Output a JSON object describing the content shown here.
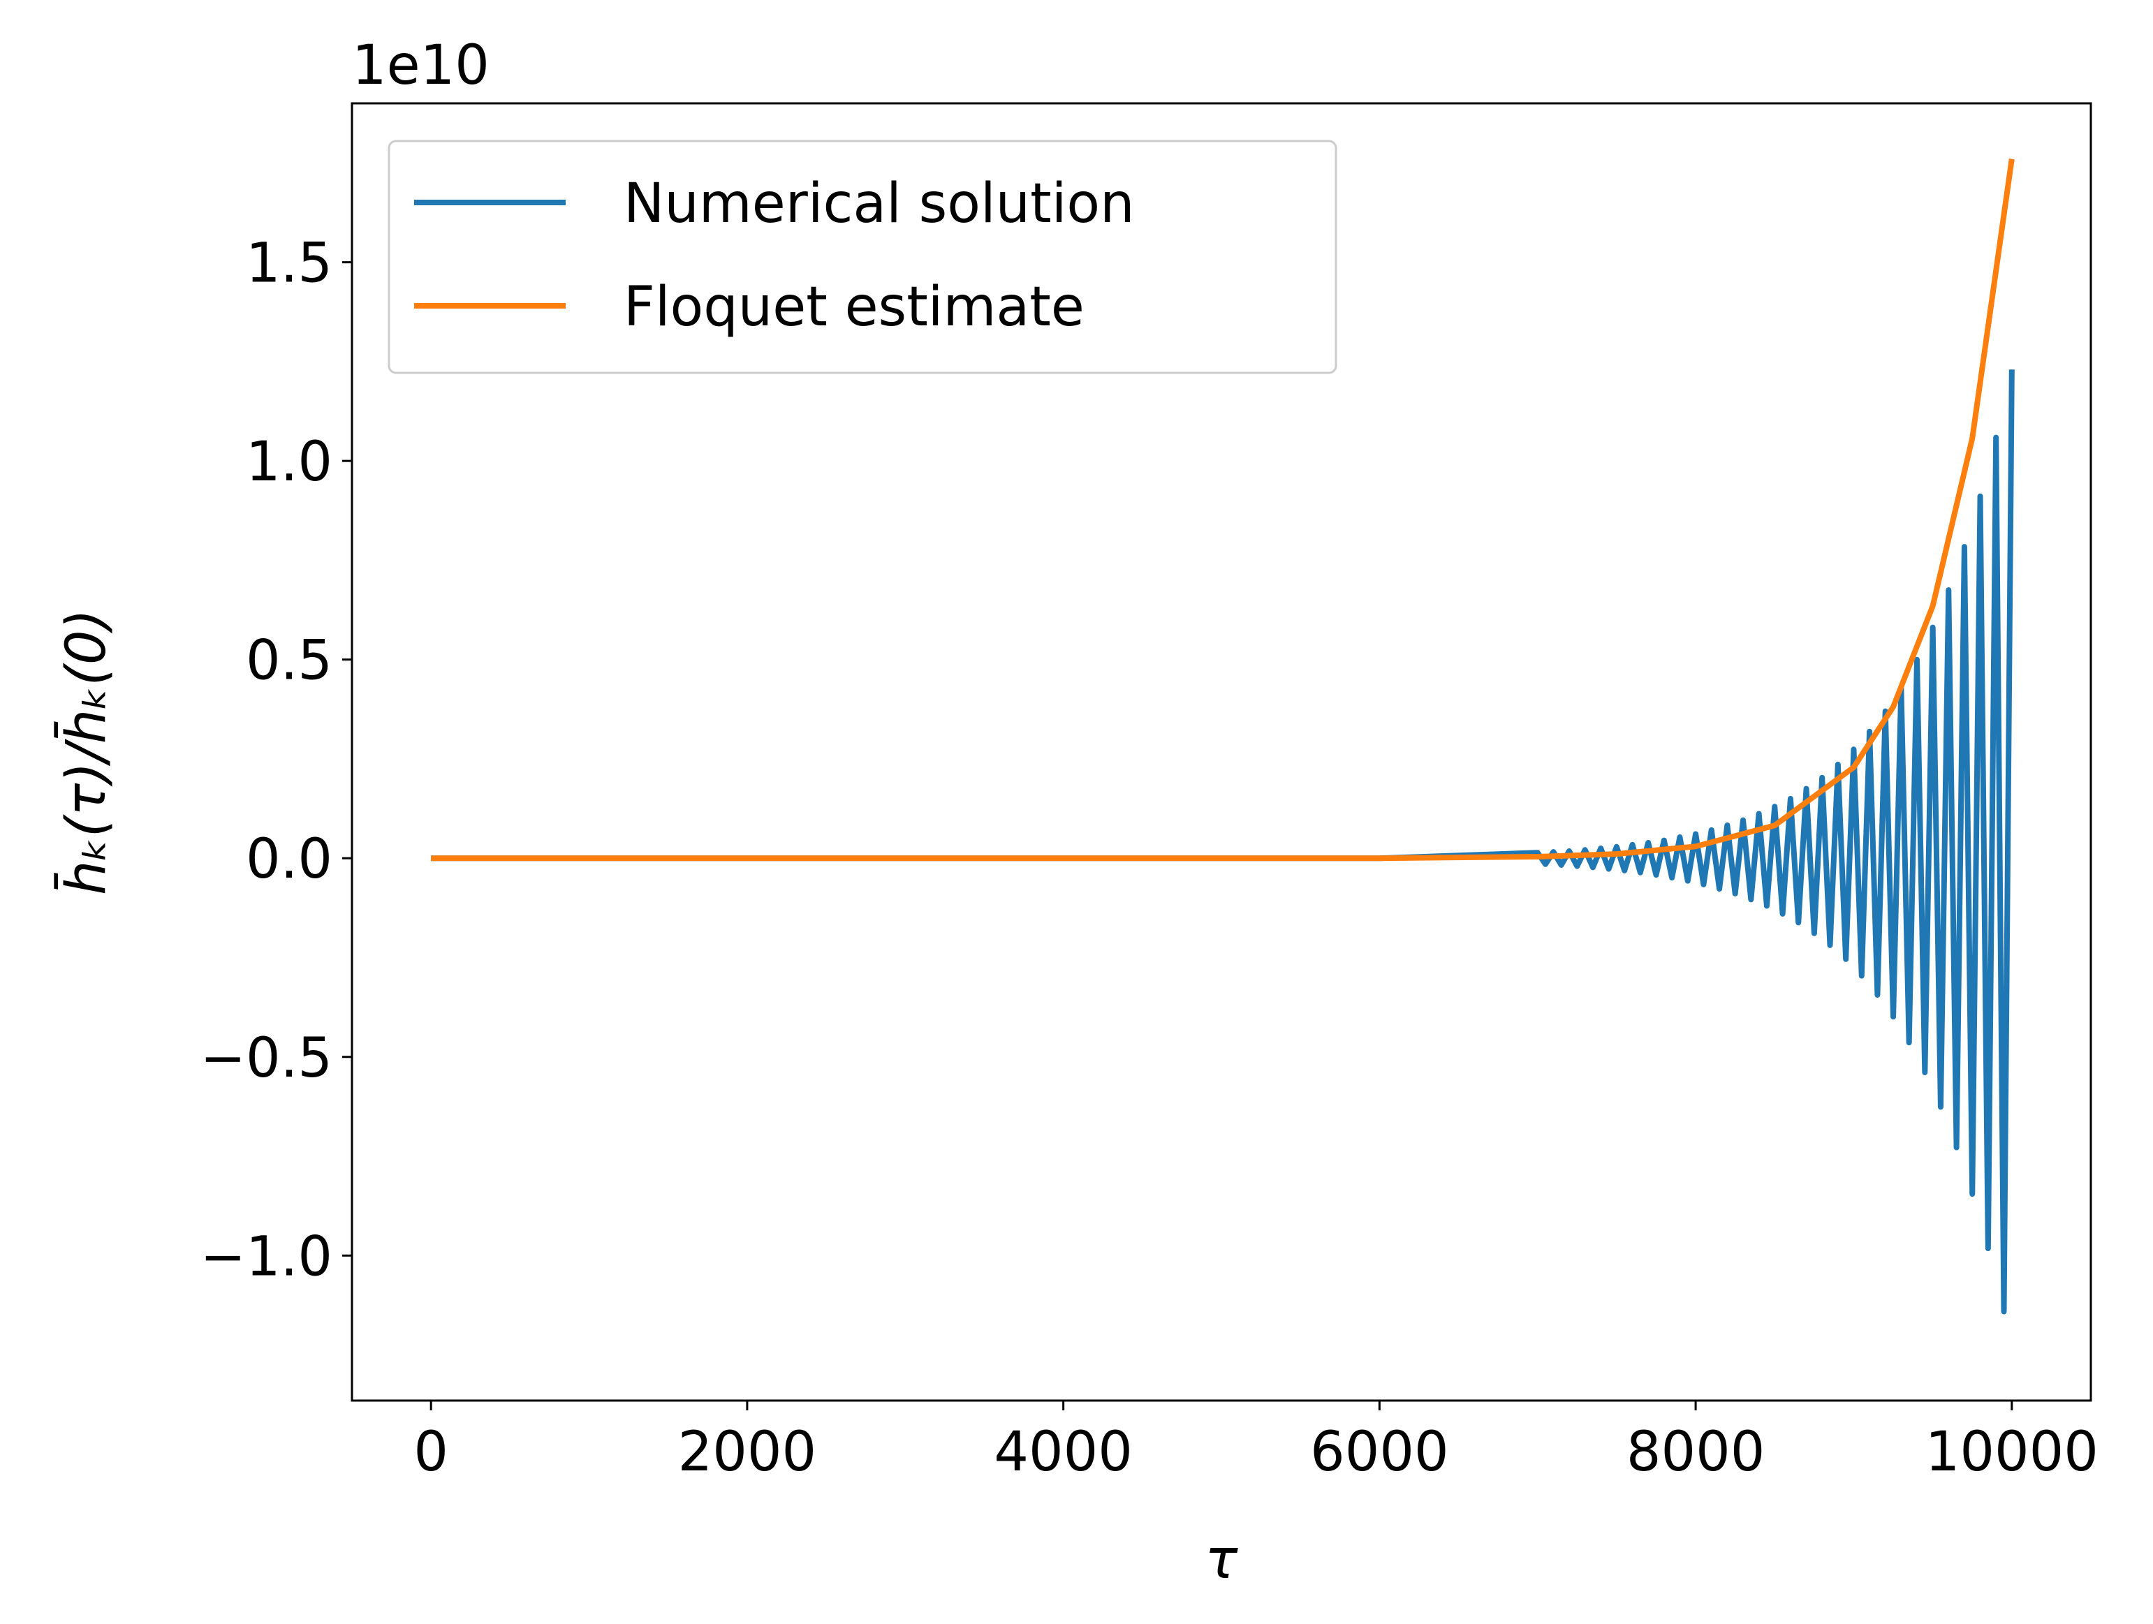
{
  "chart_data": {
    "type": "line",
    "y_offset_label": "1e10",
    "xlabel": "τ",
    "ylabel": "h̄ₖ(τ)/h̄ₖ(0)",
    "xlim": [
      -500,
      10500
    ],
    "ylim": [
      -1.365,
      1.9
    ],
    "xticks": [
      0,
      2000,
      4000,
      6000,
      8000,
      10000
    ],
    "yticks": [
      {
        "value": -1.0,
        "label": "−1.0"
      },
      {
        "value": -0.5,
        "label": "−0.5"
      },
      {
        "value": 0,
        "label": "0.0"
      },
      0.5,
      {
        "value": 1.0,
        "label": "1.0"
      },
      1.5
    ],
    "legend": "upper left",
    "series": [
      {
        "name": "Numerical solution",
        "color": "#1f77b4",
        "x": [
          0,
          1000,
          2000,
          3000,
          4000,
          5000,
          6000,
          7000,
          7050,
          7100,
          7150,
          7200,
          7250,
          7300,
          7350,
          7400,
          7450,
          7500,
          7550,
          7600,
          7650,
          7700,
          7750,
          7800,
          7850,
          7900,
          7950,
          8000,
          8050,
          8100,
          8150,
          8200,
          8250,
          8300,
          8350,
          8400,
          8450,
          8500,
          8550,
          8600,
          8650,
          8700,
          8750,
          8800,
          8850,
          8900,
          8950,
          9000,
          9050,
          9100,
          9150,
          9200,
          9250,
          9300,
          9350,
          9400,
          9450,
          9500,
          9550,
          9600,
          9650,
          9700,
          9750,
          9800,
          9850,
          9900,
          9950,
          10000
        ],
        "values": [
          0,
          0,
          0,
          0,
          0,
          0,
          0,
          0.014,
          -0.015,
          0.016,
          -0.017,
          0.018,
          -0.02,
          0.021,
          -0.023,
          0.025,
          -0.027,
          0.029,
          -0.031,
          0.034,
          -0.036,
          0.039,
          -0.042,
          0.045,
          -0.049,
          0.053,
          -0.057,
          0.061,
          -0.066,
          0.071,
          -0.077,
          0.083,
          -0.089,
          0.096,
          -0.104,
          0.112,
          -0.12,
          0.13,
          -0.14,
          0.15,
          -0.162,
          0.175,
          -0.189,
          0.203,
          -0.219,
          0.236,
          -0.254,
          0.274,
          -0.296,
          0.319,
          -0.344,
          0.37,
          -0.399,
          0.43,
          -0.464,
          0.5,
          -0.539,
          0.581,
          -0.626,
          0.675,
          -0.728,
          0.784,
          -0.845,
          0.911,
          -0.982,
          1.059,
          -1.141,
          1.23
        ]
      },
      {
        "name": "Floquet estimate",
        "color": "#ff7f0e",
        "x": [
          0,
          1000,
          2000,
          3000,
          4000,
          5000,
          6000,
          7000,
          7500,
          8000,
          8500,
          9000,
          9250,
          9500,
          9750,
          10000
        ],
        "values": [
          0,
          0,
          0,
          0,
          0,
          0,
          0,
          0.0039,
          0.0107,
          0.0297,
          0.0825,
          0.229,
          0.381,
          0.635,
          1.057,
          1.76
        ]
      }
    ]
  }
}
